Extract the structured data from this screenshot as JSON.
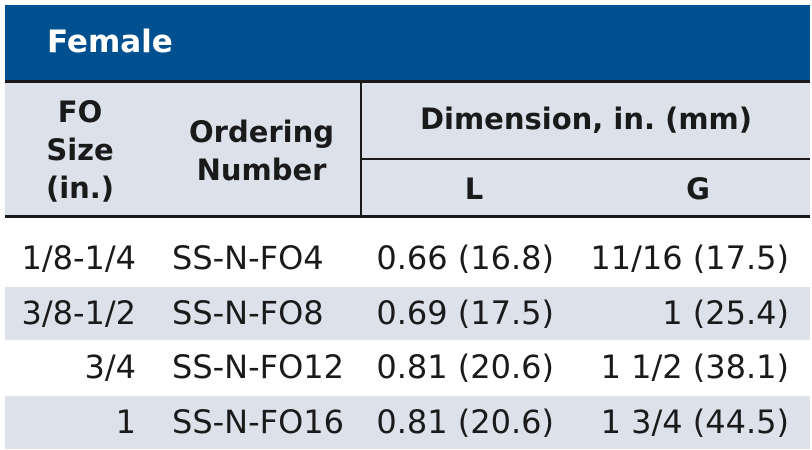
{
  "title": "Female",
  "headers": {
    "fo_size": [
      "FO",
      "Size",
      "(in.)"
    ],
    "ordering": [
      "Ordering",
      "Number"
    ],
    "dimension": "Dimension, in. (mm)",
    "l": "L",
    "g": "G"
  },
  "rows": [
    {
      "fo_size": "1/8-1/4",
      "ordering": "SS-N-FO4",
      "l": "0.66 (16.8)",
      "g": "11/16 (17.5)"
    },
    {
      "fo_size": "3/8-1/2",
      "ordering": "SS-N-FO8",
      "l": "0.69 (17.5)",
      "g": "1 (25.4)"
    },
    {
      "fo_size": "3/4",
      "ordering": "SS-N-FO12",
      "l": "0.81 (20.6)",
      "g": "1 1/2 (38.1)"
    },
    {
      "fo_size": "1",
      "ordering": "SS-N-FO16",
      "l": "0.81 (20.6)",
      "g": "1 3/4 (44.5)"
    }
  ],
  "colors": {
    "title_bar": "#00508f",
    "header_bg": "#dde1ea",
    "band_bg": "#dde1ea"
  }
}
